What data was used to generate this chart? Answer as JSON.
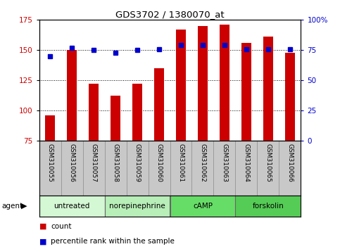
{
  "title": "GDS3702 / 1380070_at",
  "samples": [
    "GSM310055",
    "GSM310056",
    "GSM310057",
    "GSM310058",
    "GSM310059",
    "GSM310060",
    "GSM310061",
    "GSM310062",
    "GSM310063",
    "GSM310064",
    "GSM310065",
    "GSM310066"
  ],
  "counts": [
    96,
    150,
    122,
    112,
    122,
    135,
    167,
    170,
    171,
    156,
    161,
    148
  ],
  "percentile_ranks": [
    70,
    77,
    75,
    73,
    75,
    76,
    79,
    79,
    79,
    76,
    76,
    76
  ],
  "groups": [
    {
      "label": "untreated",
      "start": 0,
      "end": 3,
      "color": "#d4f7d4"
    },
    {
      "label": "norepinephrine",
      "start": 3,
      "end": 6,
      "color": "#b8eeb8"
    },
    {
      "label": "cAMP",
      "start": 6,
      "end": 9,
      "color": "#66dd66"
    },
    {
      "label": "forskolin",
      "start": 9,
      "end": 12,
      "color": "#55cc55"
    }
  ],
  "ylim_left": [
    75,
    175
  ],
  "ylim_right": [
    0,
    100
  ],
  "yticks_left": [
    75,
    100,
    125,
    150,
    175
  ],
  "yticks_right": [
    0,
    25,
    50,
    75,
    100
  ],
  "ytick_labels_right": [
    "0",
    "25",
    "50",
    "75",
    "100%"
  ],
  "bar_color": "#cc0000",
  "dot_color": "#0000cc",
  "grid_ticks": [
    100,
    125,
    150
  ],
  "background_sample": "#c8c8c8"
}
